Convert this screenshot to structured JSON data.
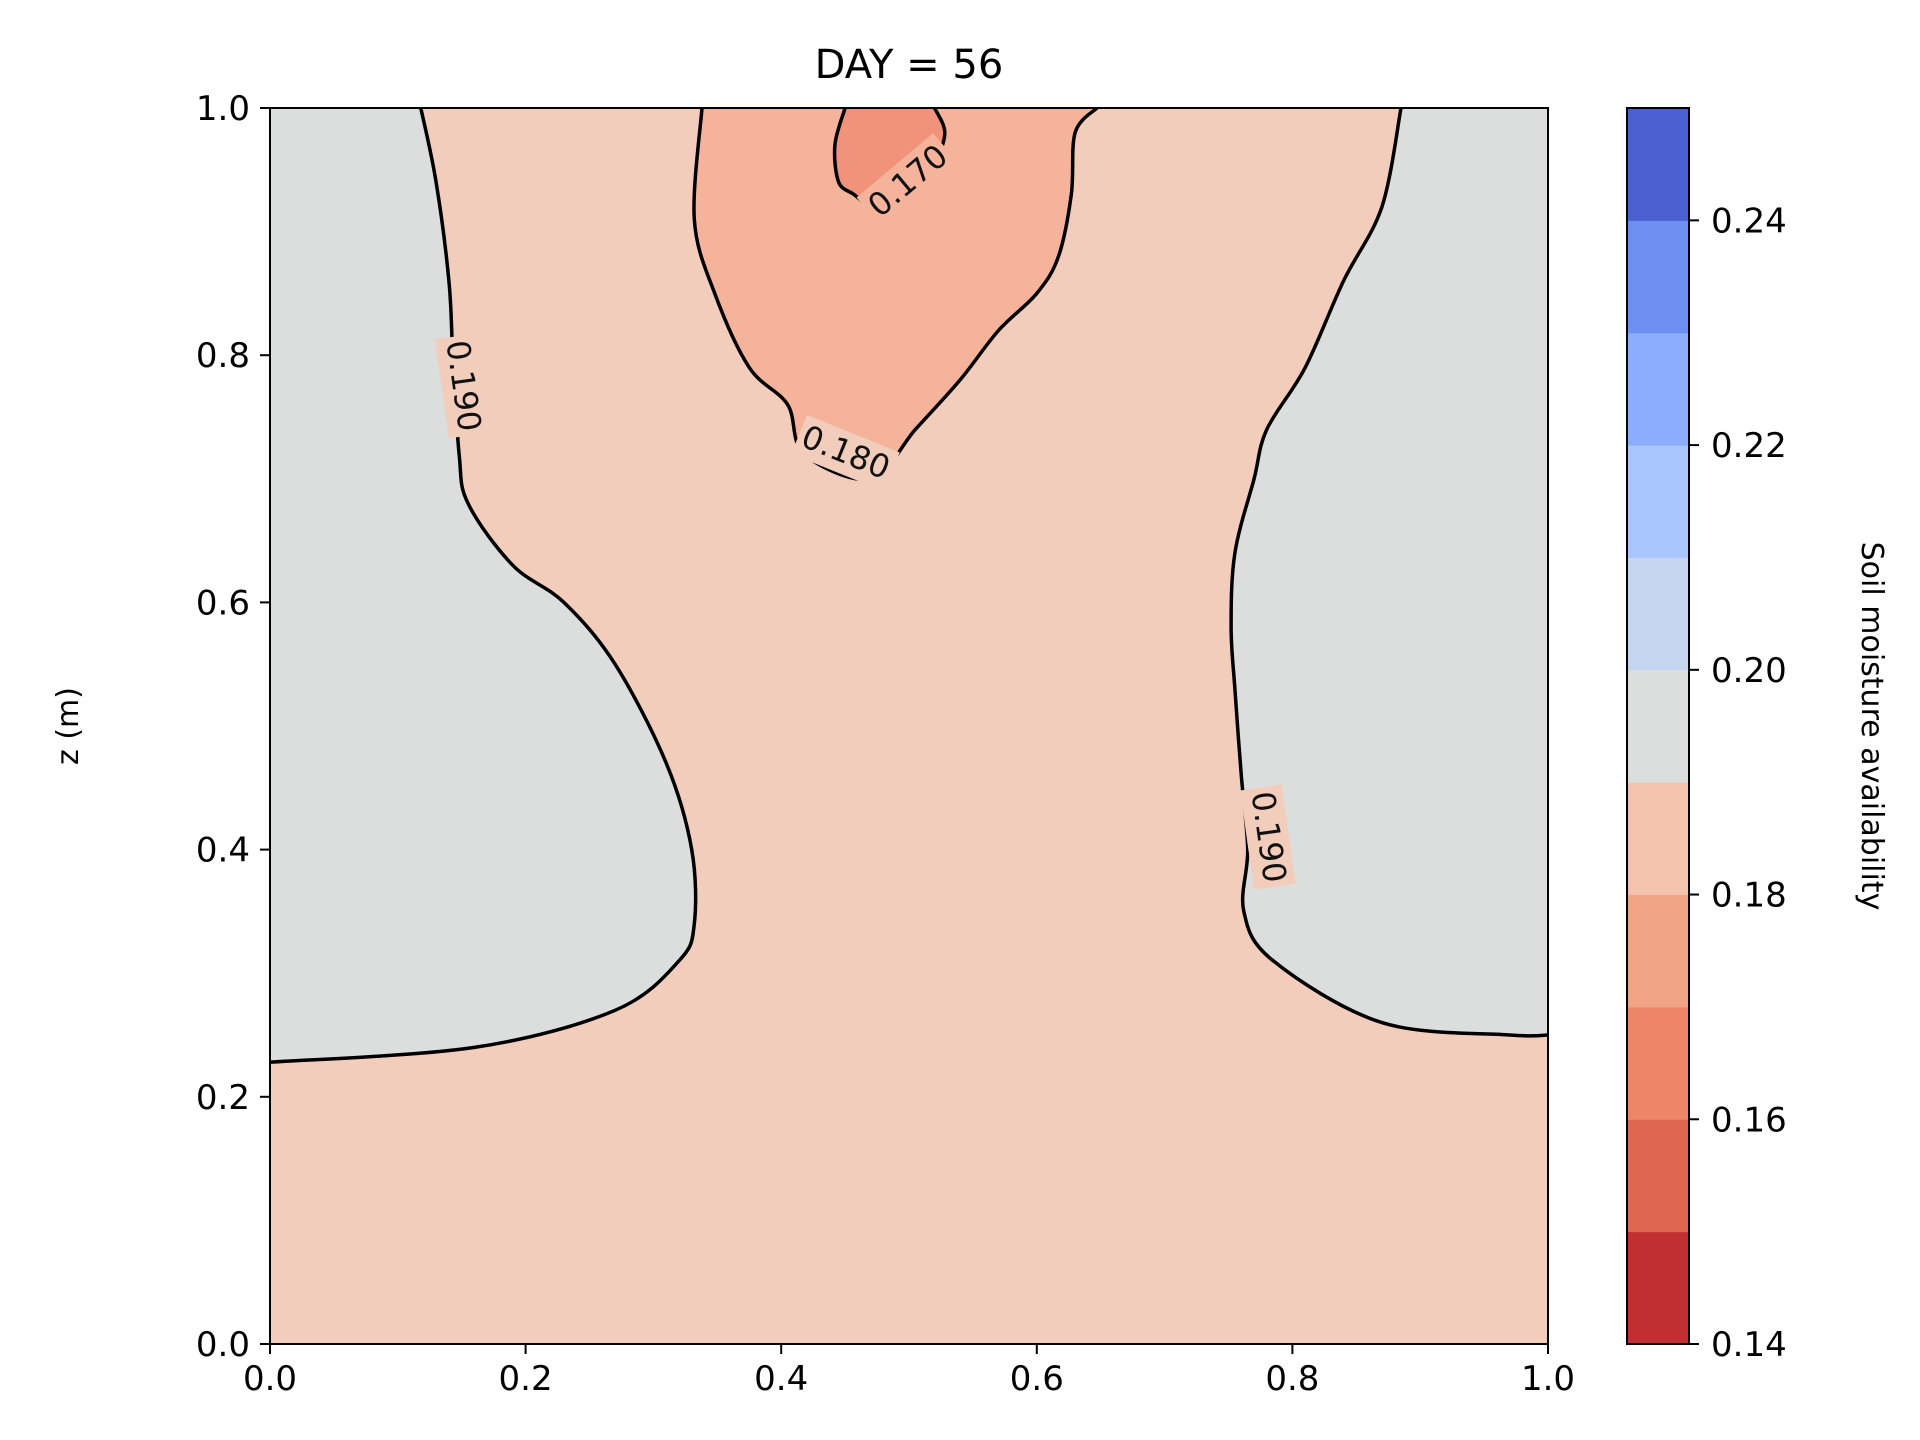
{
  "chart_data": {
    "type": "contour",
    "title": "DAY = 56",
    "xlabel": "",
    "ylabel": "z (m)",
    "xlim": [
      0.0,
      1.0
    ],
    "ylim": [
      0.0,
      1.0
    ],
    "x_ticks": [
      "0.0",
      "0.2",
      "0.4",
      "0.6",
      "0.8",
      "1.0"
    ],
    "y_ticks": [
      "0.0",
      "0.2",
      "0.4",
      "0.6",
      "0.8",
      "1.0"
    ],
    "grid": false,
    "colorbar": {
      "label": "Soil moisture availability",
      "range": [
        0.14,
        0.25
      ],
      "levels": [
        0.14,
        0.15,
        0.16,
        0.17,
        0.18,
        0.19,
        0.2,
        0.21,
        0.22,
        0.23,
        0.24,
        0.25
      ],
      "colors": [
        "#c12f32",
        "#dd6750",
        "#ee8468",
        "#f2a486",
        "#f3c3ad",
        "#dcdddd",
        "#c6d6f1",
        "#a8c5fe",
        "#8cacfc",
        "#6d8ff1",
        "#4b61d1"
      ],
      "ticks": [
        "0.14",
        "0.16",
        "0.18",
        "0.20",
        "0.22",
        "0.24"
      ]
    },
    "filled_regions": {
      "background": "#f2cdbb",
      "above_0_190": "#dcdddd",
      "below_0_180": "#f4b39a",
      "below_0_170": "#f0937a"
    },
    "contour_lines": [
      {
        "level": 0.19,
        "label": "0.190",
        "description": "left moist region boundary",
        "points": [
          [
            0.118,
            1.0
          ],
          [
            0.13,
            0.94
          ],
          [
            0.14,
            0.86
          ],
          [
            0.143,
            0.8
          ],
          [
            0.148,
            0.72
          ],
          [
            0.155,
            0.68
          ],
          [
            0.19,
            0.63
          ],
          [
            0.23,
            0.6
          ],
          [
            0.27,
            0.55
          ],
          [
            0.31,
            0.47
          ],
          [
            0.33,
            0.4
          ],
          [
            0.332,
            0.34
          ],
          [
            0.32,
            0.31
          ],
          [
            0.27,
            0.27
          ],
          [
            0.16,
            0.24
          ],
          [
            0.0,
            0.228
          ]
        ]
      },
      {
        "level": 0.19,
        "label": "0.190",
        "description": "right moist region boundary",
        "points": [
          [
            0.885,
            1.0
          ],
          [
            0.87,
            0.92
          ],
          [
            0.84,
            0.86
          ],
          [
            0.81,
            0.79
          ],
          [
            0.78,
            0.74
          ],
          [
            0.77,
            0.7
          ],
          [
            0.755,
            0.64
          ],
          [
            0.752,
            0.58
          ],
          [
            0.755,
            0.53
          ],
          [
            0.76,
            0.46
          ],
          [
            0.765,
            0.4
          ],
          [
            0.762,
            0.35
          ],
          [
            0.785,
            0.31
          ],
          [
            0.87,
            0.26
          ],
          [
            0.97,
            0.25
          ],
          [
            1.0,
            0.25
          ]
        ]
      },
      {
        "level": 0.18,
        "label": "0.180",
        "points": [
          [
            0.338,
            1.0
          ],
          [
            0.332,
            0.91
          ],
          [
            0.348,
            0.85
          ],
          [
            0.375,
            0.79
          ],
          [
            0.405,
            0.76
          ],
          [
            0.418,
            0.72
          ],
          [
            0.47,
            0.7
          ],
          [
            0.505,
            0.74
          ],
          [
            0.54,
            0.78
          ],
          [
            0.57,
            0.82
          ],
          [
            0.6,
            0.85
          ],
          [
            0.617,
            0.88
          ],
          [
            0.627,
            0.93
          ],
          [
            0.63,
            0.98
          ],
          [
            0.647,
            1.0
          ]
        ]
      },
      {
        "level": 0.17,
        "label": "0.170",
        "points": [
          [
            0.45,
            1.0
          ],
          [
            0.442,
            0.97
          ],
          [
            0.445,
            0.94
          ],
          [
            0.457,
            0.93
          ],
          [
            0.47,
            0.92
          ],
          [
            0.485,
            0.918
          ],
          [
            0.505,
            0.93
          ],
          [
            0.52,
            0.955
          ],
          [
            0.528,
            0.98
          ],
          [
            0.52,
            1.0
          ]
        ]
      }
    ],
    "contour_labels": [
      {
        "text": "0.190",
        "x": 0.15,
        "y": 0.775,
        "rotation": 82
      },
      {
        "text": "0.190",
        "x": 0.78,
        "y": 0.41,
        "rotation": 82
      },
      {
        "text": "0.180",
        "x": 0.45,
        "y": 0.72,
        "rotation": 22
      },
      {
        "text": "0.170",
        "x": 0.5,
        "y": 0.94,
        "rotation": -40
      }
    ]
  }
}
